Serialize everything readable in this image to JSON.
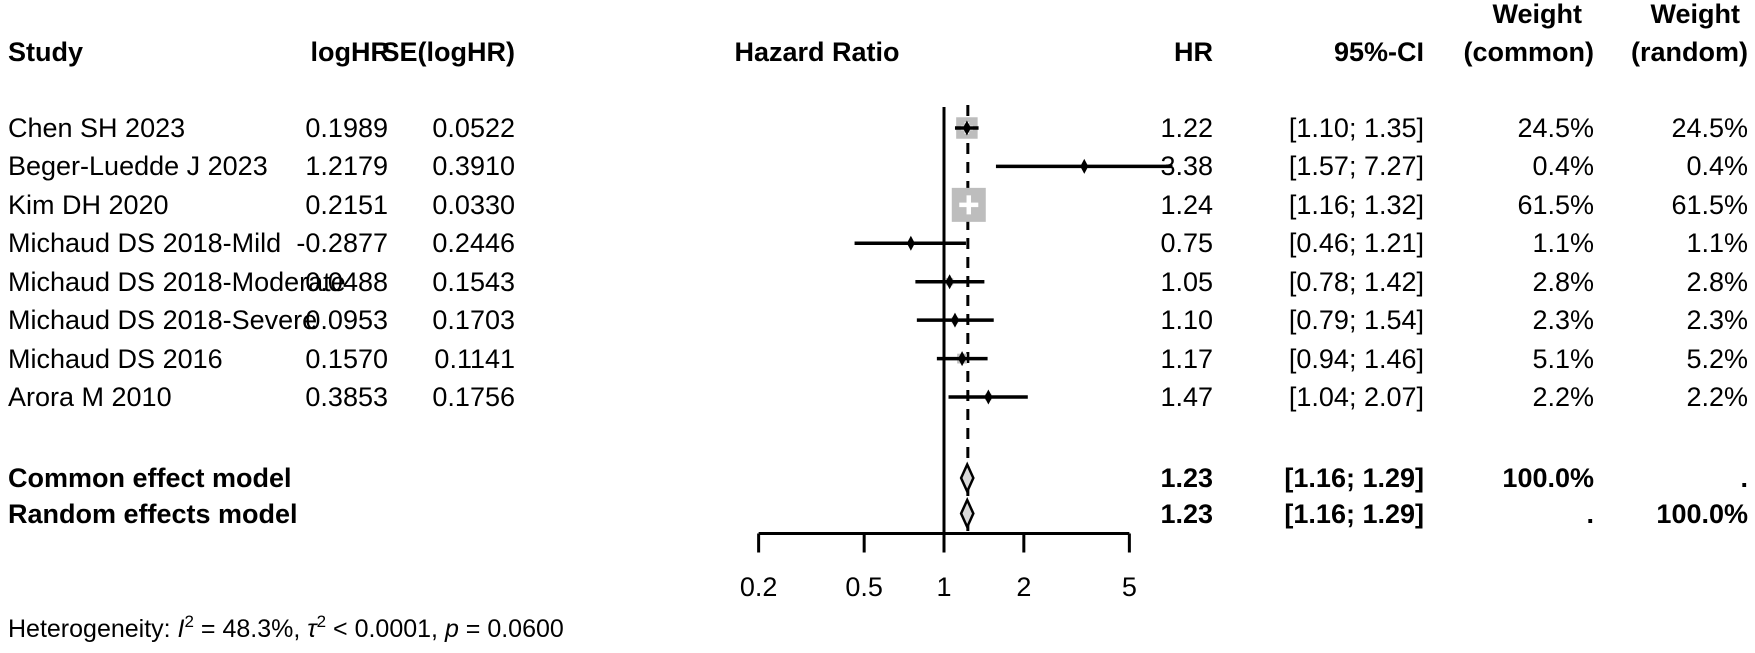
{
  "header": {
    "study": "Study",
    "logHR": "logHR",
    "se": "SE(logHR)",
    "plot": "Hazard Ratio",
    "hr": "HR",
    "ci": "95%-CI",
    "weight_common_line1": "Weight",
    "weight_common_line2": "(common)",
    "weight_random_line1": "Weight",
    "weight_random_line2": "(random)"
  },
  "chart_data": {
    "type": "forest",
    "x_scale": "log",
    "axis_ticks": [
      {
        "label": "0.2",
        "value": 0.2
      },
      {
        "label": "0.5",
        "value": 0.5
      },
      {
        "label": "1",
        "value": 1
      },
      {
        "label": "2",
        "value": 2
      },
      {
        "label": "5",
        "value": 5
      }
    ],
    "axis_range": [
      0.2,
      5
    ],
    "reference_line": 1.0,
    "overall_dashed_line": 1.23,
    "studies": [
      {
        "study": "Chen SH 2023",
        "logHR": "0.1989",
        "se": "0.0522",
        "hr": 1.22,
        "ci_low": 1.1,
        "ci_high": 1.35,
        "hr_text": "1.22",
        "ci_text": "[1.10; 1.35]",
        "weight_common": "24.5%",
        "weight_random": "24.5%",
        "weight_pct": 24.5
      },
      {
        "study": "Beger-Luedde J 2023",
        "logHR": "1.2179",
        "se": "0.3910",
        "hr": 3.38,
        "ci_low": 1.57,
        "ci_high": 7.27,
        "hr_text": "3.38",
        "ci_text": "[1.57; 7.27]",
        "weight_common": "0.4%",
        "weight_random": "0.4%",
        "weight_pct": 0.4
      },
      {
        "study": "Kim DH 2020",
        "logHR": "0.2151",
        "se": "0.0330",
        "hr": 1.24,
        "ci_low": 1.16,
        "ci_high": 1.32,
        "hr_text": "1.24",
        "ci_text": "[1.16; 1.32]",
        "weight_common": "61.5%",
        "weight_random": "61.5%",
        "weight_pct": 61.5
      },
      {
        "study": "Michaud DS 2018-Mild",
        "logHR": "-0.2877",
        "se": "0.2446",
        "hr": 0.75,
        "ci_low": 0.46,
        "ci_high": 1.21,
        "hr_text": "0.75",
        "ci_text": "[0.46; 1.21]",
        "weight_common": "1.1%",
        "weight_random": "1.1%",
        "weight_pct": 1.1
      },
      {
        "study": "Michaud DS 2018-Moderate",
        "logHR": "0.0488",
        "se": "0.1543",
        "hr": 1.05,
        "ci_low": 0.78,
        "ci_high": 1.42,
        "hr_text": "1.05",
        "ci_text": "[0.78; 1.42]",
        "weight_common": "2.8%",
        "weight_random": "2.8%",
        "weight_pct": 2.8
      },
      {
        "study": "Michaud DS 2018-Severe",
        "logHR": "0.0953",
        "se": "0.1703",
        "hr": 1.1,
        "ci_low": 0.79,
        "ci_high": 1.54,
        "hr_text": "1.10",
        "ci_text": "[0.79; 1.54]",
        "weight_common": "2.3%",
        "weight_random": "2.3%",
        "weight_pct": 2.3
      },
      {
        "study": "Michaud DS 2016",
        "logHR": "0.1570",
        "se": "0.1141",
        "hr": 1.17,
        "ci_low": 0.94,
        "ci_high": 1.46,
        "hr_text": "1.17",
        "ci_text": "[0.94; 1.46]",
        "weight_common": "5.1%",
        "weight_random": "5.2%",
        "weight_pct": 5.1
      },
      {
        "study": "Arora M 2010",
        "logHR": "0.3853",
        "se": "0.1756",
        "hr": 1.47,
        "ci_low": 1.04,
        "ci_high": 2.07,
        "hr_text": "1.47",
        "ci_text": "[1.04; 2.07]",
        "weight_common": "2.2%",
        "weight_random": "2.2%",
        "weight_pct": 2.2
      }
    ],
    "summaries": [
      {
        "label": "Common effect model",
        "hr": 1.23,
        "ci_low": 1.16,
        "ci_high": 1.29,
        "hr_text": "1.23",
        "ci_text": "[1.16; 1.29]",
        "weight_common": "100.0%",
        "weight_random": "."
      },
      {
        "label": "Random effects model",
        "hr": 1.23,
        "ci_low": 1.16,
        "ci_high": 1.29,
        "hr_text": "1.23",
        "ci_text": "[1.16; 1.29]",
        "weight_common": ".",
        "weight_random": "100.0%"
      }
    ],
    "heterogeneity_parts": [
      {
        "text": "Heterogeneity: ",
        "style": "normal"
      },
      {
        "text": "I",
        "style": "italic"
      },
      {
        "text": "2",
        "style": "sup"
      },
      {
        "text": " = 48.3%, ",
        "style": "normal"
      },
      {
        "text": "τ",
        "style": "italic"
      },
      {
        "text": "2",
        "style": "sup"
      },
      {
        "text": " < 0.0001, ",
        "style": "normal"
      },
      {
        "text": "p",
        "style": "italic"
      },
      {
        "text": " = 0.0600",
        "style": "normal"
      }
    ]
  },
  "colors": {
    "text": "#000000",
    "line": "#000000",
    "square_fill": "#bdbdbd",
    "diamond_fill": "#d9d9d9",
    "background": "#ffffff"
  }
}
